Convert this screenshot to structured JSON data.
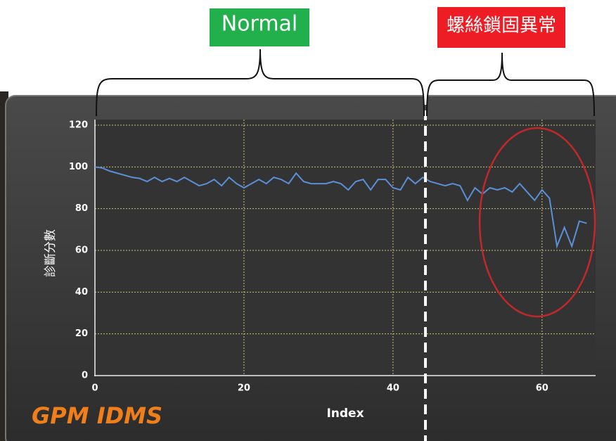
{
  "chart_data": {
    "type": "line",
    "annotations": [
      "Normal",
      "螺絲鎖固異常"
    ],
    "logo": "GPM IDMS",
    "x_label": "Index",
    "y_label": "診斷分數",
    "x": [
      0,
      1,
      2,
      3,
      4,
      5,
      6,
      7,
      8,
      9,
      10,
      11,
      12,
      13,
      14,
      15,
      16,
      17,
      18,
      19,
      20,
      21,
      22,
      23,
      24,
      25,
      26,
      27,
      28,
      29,
      30,
      31,
      32,
      33,
      34,
      35,
      36,
      37,
      38,
      39,
      40,
      41,
      42,
      43,
      44,
      45,
      46,
      47,
      48,
      49,
      50,
      51,
      52,
      53,
      54,
      55,
      56,
      57,
      58,
      59,
      60,
      61,
      62,
      63,
      64,
      65,
      66
    ],
    "values": [
      100,
      99.5,
      98,
      97,
      96,
      95,
      94.5,
      93,
      95,
      93,
      94.5,
      93,
      95,
      93,
      91,
      92,
      94,
      91,
      95,
      92,
      90,
      92,
      94,
      92,
      95,
      94,
      92,
      97,
      93,
      92,
      92,
      92,
      93,
      92,
      89,
      93,
      94,
      89,
      94,
      94,
      90,
      89,
      95,
      92,
      95,
      93,
      92,
      91,
      92,
      91,
      84,
      90,
      87,
      90,
      89,
      90,
      88,
      92,
      88,
      84,
      89,
      85,
      62,
      71,
      62,
      74,
      73
    ],
    "color": "#5b8fd6",
    "xlim": [
      0,
      67
    ],
    "ylim": [
      0,
      120
    ],
    "xticks": [
      0,
      20,
      40,
      60
    ],
    "yticks": [
      0,
      20,
      40,
      60,
      80,
      100,
      120
    ],
    "grid": true
  }
}
